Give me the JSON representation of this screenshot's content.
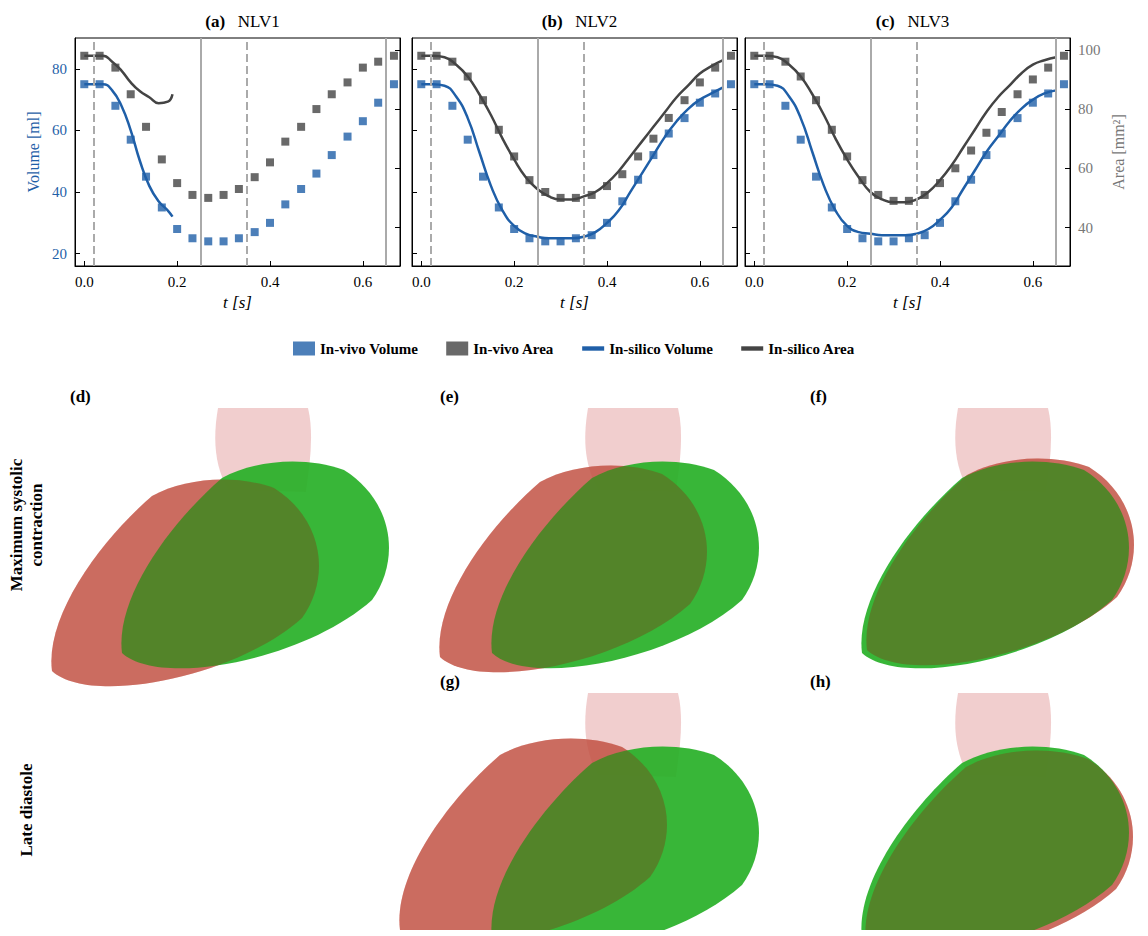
{
  "chart_data": [
    {
      "type": "line",
      "panel": "(a)",
      "title": "NLV1",
      "xlabel": "t [s]",
      "ylabel": "Volume [ml]",
      "xlim": [
        -0.02,
        0.68
      ],
      "xticks": [
        {
          "value": 0,
          "label": "0.0"
        },
        {
          "value": 0.2,
          "label": "0.2"
        },
        {
          "value": 0.4,
          "label": "0.4"
        },
        {
          "value": 0.6,
          "label": "0.6"
        }
      ],
      "ylim": [
        16,
        90
      ],
      "yticks": [
        20,
        40,
        60,
        80
      ],
      "y2lim": [
        27,
        104
      ],
      "y2ticks": [
        40,
        60,
        80,
        100
      ],
      "legend": "bottom",
      "vlines": [
        {
          "x": 0.02,
          "line_style": "dashed"
        },
        {
          "x": 0.25,
          "line_style": "solid"
        },
        {
          "x": 0.35,
          "line_style": "dashed"
        },
        {
          "x": 0.65,
          "line_style": "solid"
        }
      ],
      "series": [
        {
          "name": "In-vivo Volume",
          "type": "scatter",
          "marker": "square",
          "color": "#1f5fa8",
          "axis": "y",
          "x": [
            0,
            0.033,
            0.067,
            0.1,
            0.133,
            0.167,
            0.2,
            0.233,
            0.267,
            0.3,
            0.333,
            0.367,
            0.4,
            0.433,
            0.467,
            0.5,
            0.533,
            0.567,
            0.6,
            0.633,
            0.667
          ],
          "values": [
            75,
            75,
            68,
            57,
            45,
            35,
            28,
            25,
            24,
            24,
            25,
            27,
            30,
            36,
            41,
            46,
            52,
            58,
            63,
            69,
            75
          ]
        },
        {
          "name": "In-vivo Area",
          "type": "scatter",
          "marker": "square",
          "color": "#444444",
          "axis": "y2",
          "x": [
            0,
            0.033,
            0.067,
            0.1,
            0.133,
            0.167,
            0.2,
            0.233,
            0.267,
            0.3,
            0.333,
            0.367,
            0.4,
            0.433,
            0.467,
            0.5,
            0.533,
            0.567,
            0.6,
            0.633,
            0.667
          ],
          "values": [
            98,
            98,
            94,
            85,
            74,
            63,
            55,
            51,
            50,
            51,
            53,
            57,
            62,
            69,
            74,
            80,
            85,
            89,
            94,
            96,
            98
          ]
        },
        {
          "name": "In-silico Volume",
          "type": "line",
          "line_style": "solid",
          "color": "#1f5fa8",
          "axis": "y",
          "x": [
            0,
            0.02,
            0.04,
            0.06,
            0.08,
            0.1,
            0.12,
            0.14,
            0.16,
            0.18,
            0.19
          ],
          "values": [
            75,
            75,
            75,
            73,
            68,
            60,
            50,
            42,
            37,
            34,
            32
          ]
        },
        {
          "name": "In-silico Area",
          "type": "line",
          "line_style": "solid",
          "color": "#444444",
          "axis": "y2",
          "x": [
            0,
            0.02,
            0.04,
            0.06,
            0.08,
            0.1,
            0.12,
            0.14,
            0.16,
            0.18,
            0.19
          ],
          "values": [
            98,
            98,
            98,
            96,
            93,
            89,
            86,
            84,
            82,
            82.5,
            85
          ]
        }
      ]
    },
    {
      "type": "line",
      "panel": "(b)",
      "title": "NLV2",
      "xlabel": "t [s]",
      "tick_labels": "x",
      "xlim": [
        -0.02,
        0.68
      ],
      "xticks": [
        {
          "value": 0,
          "label": "0.0"
        },
        {
          "value": 0.2,
          "label": "0.2"
        },
        {
          "value": 0.4,
          "label": "0.4"
        },
        {
          "value": 0.6,
          "label": "0.6"
        }
      ],
      "ylim": [
        16,
        90
      ],
      "yticks": [
        20,
        40,
        60,
        80
      ],
      "y2lim": [
        27,
        104
      ],
      "y2ticks": [
        40,
        60,
        80,
        100
      ],
      "legend": "bottom",
      "vlines": [
        {
          "x": 0.02,
          "line_style": "dashed"
        },
        {
          "x": 0.25,
          "line_style": "solid"
        },
        {
          "x": 0.35,
          "line_style": "dashed"
        },
        {
          "x": 0.65,
          "line_style": "solid"
        }
      ],
      "series": [
        {
          "name": "In-vivo Volume",
          "type": "scatter",
          "marker": "square",
          "color": "#1f5fa8",
          "axis": "y",
          "x": [
            0,
            0.033,
            0.067,
            0.1,
            0.133,
            0.167,
            0.2,
            0.233,
            0.267,
            0.3,
            0.333,
            0.367,
            0.4,
            0.433,
            0.467,
            0.5,
            0.533,
            0.567,
            0.6,
            0.633,
            0.667
          ],
          "values": [
            75,
            75,
            68,
            57,
            45,
            35,
            28,
            25,
            24,
            24,
            25,
            26,
            30,
            37,
            44,
            52,
            59,
            64,
            69,
            72,
            75
          ]
        },
        {
          "name": "In-vivo Area",
          "type": "scatter",
          "marker": "square",
          "color": "#444444",
          "axis": "y2",
          "x": [
            0,
            0.033,
            0.067,
            0.1,
            0.133,
            0.167,
            0.2,
            0.233,
            0.267,
            0.3,
            0.333,
            0.367,
            0.4,
            0.433,
            0.467,
            0.5,
            0.533,
            0.567,
            0.6,
            0.633,
            0.667
          ],
          "values": [
            98,
            98,
            96,
            91,
            83,
            73,
            64,
            56,
            52,
            50,
            50,
            51,
            54,
            58,
            64,
            70,
            77,
            83,
            89,
            94,
            98
          ]
        },
        {
          "name": "In-silico Volume",
          "type": "line",
          "line_style": "solid",
          "color": "#1f5fa8",
          "axis": "y",
          "x": [
            0,
            0.025,
            0.05,
            0.075,
            0.1,
            0.125,
            0.15,
            0.175,
            0.2,
            0.225,
            0.25,
            0.275,
            0.3,
            0.325,
            0.35,
            0.375,
            0.4,
            0.425,
            0.45,
            0.475,
            0.5,
            0.525,
            0.55,
            0.575,
            0.6,
            0.625,
            0.65
          ],
          "values": [
            75,
            75,
            74.5,
            71,
            64,
            53,
            42,
            34,
            29,
            26.5,
            25.5,
            25,
            25,
            25,
            25.5,
            27,
            30,
            34,
            40,
            46,
            52,
            58,
            63,
            67,
            70,
            72,
            74
          ]
        },
        {
          "name": "In-silico Area",
          "type": "line",
          "line_style": "solid",
          "color": "#444444",
          "axis": "y2",
          "x": [
            0,
            0.025,
            0.05,
            0.075,
            0.1,
            0.125,
            0.15,
            0.175,
            0.2,
            0.225,
            0.25,
            0.275,
            0.3,
            0.325,
            0.35,
            0.375,
            0.4,
            0.425,
            0.45,
            0.475,
            0.5,
            0.525,
            0.55,
            0.575,
            0.6,
            0.625,
            0.65
          ],
          "values": [
            98,
            98,
            97.5,
            95,
            91,
            85,
            78,
            70,
            63,
            57,
            53,
            50.5,
            49.5,
            49.5,
            50.5,
            52,
            55,
            59,
            64,
            69,
            74,
            79,
            84,
            88,
            92,
            94.5,
            96.5
          ]
        }
      ]
    },
    {
      "type": "line",
      "panel": "(c)",
      "title": "NLV3",
      "xlabel": "t [s]",
      "y2label": "Area [mm²]",
      "xlim": [
        -0.02,
        0.68
      ],
      "xticks": [
        {
          "value": 0,
          "label": "0.0"
        },
        {
          "value": 0.2,
          "label": "0.2"
        },
        {
          "value": 0.4,
          "label": "0.4"
        },
        {
          "value": 0.6,
          "label": "0.6"
        }
      ],
      "ylim": [
        16,
        90
      ],
      "yticks": [
        20,
        40,
        60,
        80
      ],
      "y2lim": [
        27,
        104
      ],
      "y2ticks": [
        40,
        60,
        80,
        100
      ],
      "legend": "bottom",
      "vlines": [
        {
          "x": 0.02,
          "line_style": "dashed"
        },
        {
          "x": 0.25,
          "line_style": "solid"
        },
        {
          "x": 0.35,
          "line_style": "dashed"
        },
        {
          "x": 0.65,
          "line_style": "solid"
        }
      ],
      "series": [
        {
          "name": "In-vivo Volume",
          "type": "scatter",
          "marker": "square",
          "color": "#1f5fa8",
          "axis": "y",
          "x": [
            0,
            0.033,
            0.067,
            0.1,
            0.133,
            0.167,
            0.2,
            0.233,
            0.267,
            0.3,
            0.333,
            0.367,
            0.4,
            0.433,
            0.467,
            0.5,
            0.533,
            0.567,
            0.6,
            0.633,
            0.667
          ],
          "values": [
            75,
            75,
            68,
            57,
            45,
            35,
            28,
            25,
            24,
            24,
            25,
            26,
            30,
            37,
            44,
            52,
            59,
            64,
            69,
            72,
            75
          ]
        },
        {
          "name": "In-vivo Area",
          "type": "scatter",
          "marker": "square",
          "color": "#444444",
          "axis": "y2",
          "x": [
            0,
            0.033,
            0.067,
            0.1,
            0.133,
            0.167,
            0.2,
            0.233,
            0.267,
            0.3,
            0.333,
            0.367,
            0.4,
            0.433,
            0.467,
            0.5,
            0.533,
            0.567,
            0.6,
            0.633,
            0.667
          ],
          "values": [
            98,
            98,
            96,
            91,
            83,
            73,
            64,
            56,
            51,
            49,
            49,
            51,
            55,
            60,
            66,
            72,
            79,
            85,
            90,
            94,
            98
          ]
        },
        {
          "name": "In-silico Volume",
          "type": "line",
          "line_style": "solid",
          "color": "#1f5fa8",
          "axis": "y",
          "x": [
            0,
            0.025,
            0.05,
            0.075,
            0.1,
            0.125,
            0.15,
            0.175,
            0.2,
            0.225,
            0.25,
            0.275,
            0.3,
            0.325,
            0.35,
            0.375,
            0.4,
            0.425,
            0.45,
            0.475,
            0.5,
            0.525,
            0.55,
            0.575,
            0.6,
            0.625,
            0.65
          ],
          "values": [
            75,
            75,
            74.5,
            71,
            64,
            53,
            42,
            34,
            29,
            27,
            26.5,
            26,
            26,
            26,
            26.5,
            28,
            31,
            35,
            41,
            47,
            53,
            58,
            63,
            67,
            70,
            72,
            73
          ]
        },
        {
          "name": "In-silico Area",
          "type": "line",
          "line_style": "solid",
          "color": "#444444",
          "axis": "y2",
          "x": [
            0,
            0.025,
            0.05,
            0.075,
            0.1,
            0.125,
            0.15,
            0.175,
            0.2,
            0.225,
            0.25,
            0.275,
            0.3,
            0.325,
            0.35,
            0.375,
            0.4,
            0.425,
            0.45,
            0.475,
            0.5,
            0.525,
            0.55,
            0.575,
            0.6,
            0.625,
            0.65
          ],
          "values": [
            98,
            98,
            97.5,
            95,
            91,
            85,
            78,
            70,
            63,
            57,
            52,
            49.5,
            48.5,
            48.5,
            49.5,
            52,
            56,
            61,
            67,
            73,
            79,
            84,
            88,
            92,
            95,
            96.5,
            97.5
          ]
        }
      ]
    }
  ],
  "renders": {
    "rows": [
      {
        "label": "Maximum systolic contraction",
        "panels": [
          "(d)",
          "(e)",
          "(f)"
        ]
      },
      {
        "label": "Late diastole",
        "panels": [
          null,
          "(g)",
          "(h)"
        ]
      }
    ]
  }
}
